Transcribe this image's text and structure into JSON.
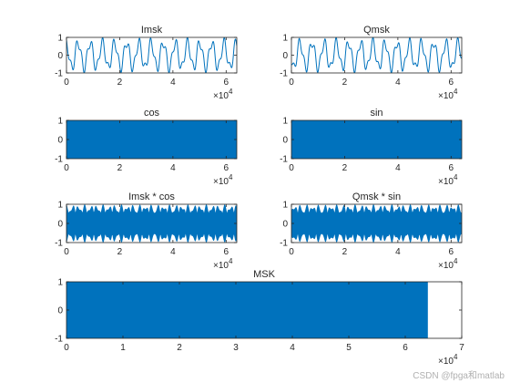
{
  "watermark": "CSDN @fpga和matlab",
  "chart_data": [
    {
      "type": "line",
      "title": "Imsk",
      "xlim": [
        0,
        64000
      ],
      "ylim": [
        -1,
        1
      ],
      "x_ticks": [
        0,
        2,
        4,
        6
      ],
      "y_ticks": [
        -1,
        0,
        1
      ],
      "x_multiplier": "×10",
      "x_exponent": "4",
      "color": "#0072BD",
      "waveform": "msk-baseband-in-phase",
      "approx_cycles": 14
    },
    {
      "type": "line",
      "title": "Qmsk",
      "xlim": [
        0,
        64000
      ],
      "ylim": [
        -1,
        1
      ],
      "x_ticks": [
        0,
        2,
        4,
        6
      ],
      "y_ticks": [
        -1,
        0,
        1
      ],
      "x_multiplier": "×10",
      "x_exponent": "4",
      "color": "#0072BD",
      "waveform": "msk-baseband-quadrature",
      "approx_cycles": 14
    },
    {
      "type": "line",
      "title": "cos",
      "xlim": [
        0,
        64000
      ],
      "ylim": [
        -1,
        1
      ],
      "x_ticks": [
        0,
        2,
        4,
        6
      ],
      "y_ticks": [
        -1,
        0,
        1
      ],
      "x_multiplier": "×10",
      "x_exponent": "4",
      "color": "#0072BD",
      "waveform": "carrier-cosine",
      "amplitude": 1
    },
    {
      "type": "line",
      "title": "sin",
      "xlim": [
        0,
        64000
      ],
      "ylim": [
        -1,
        1
      ],
      "x_ticks": [
        0,
        2,
        4,
        6
      ],
      "y_ticks": [
        -1,
        0,
        1
      ],
      "x_multiplier": "×10",
      "x_exponent": "4",
      "color": "#0072BD",
      "waveform": "carrier-sine",
      "amplitude": 1
    },
    {
      "type": "line",
      "title": "Imsk * cos",
      "xlim": [
        0,
        64000
      ],
      "ylim": [
        -1,
        1
      ],
      "x_ticks": [
        0,
        2,
        4,
        6
      ],
      "y_ticks": [
        -1,
        0,
        1
      ],
      "x_multiplier": "×10",
      "x_exponent": "4",
      "color": "#0072BD",
      "waveform": "modulated-carrier",
      "approx_envelope_cycles": 14
    },
    {
      "type": "line",
      "title": "Qmsk * sin",
      "xlim": [
        0,
        64000
      ],
      "ylim": [
        -1,
        1
      ],
      "x_ticks": [
        0,
        2,
        4,
        6
      ],
      "y_ticks": [
        -1,
        0,
        1
      ],
      "x_multiplier": "×10",
      "x_exponent": "4",
      "color": "#0072BD",
      "waveform": "modulated-carrier",
      "approx_envelope_cycles": 14
    },
    {
      "type": "line",
      "title": "MSK",
      "xlim": [
        0,
        70000
      ],
      "ylim": [
        -1,
        1
      ],
      "x_ticks": [
        0,
        1,
        2,
        3,
        4,
        5,
        6,
        7
      ],
      "y_ticks": [
        -1,
        0,
        1
      ],
      "x_multiplier": "×10",
      "x_exponent": "4",
      "color": "#0072BD",
      "waveform": "msk-passband",
      "signal_end": 64000,
      "amplitude": 1
    }
  ]
}
